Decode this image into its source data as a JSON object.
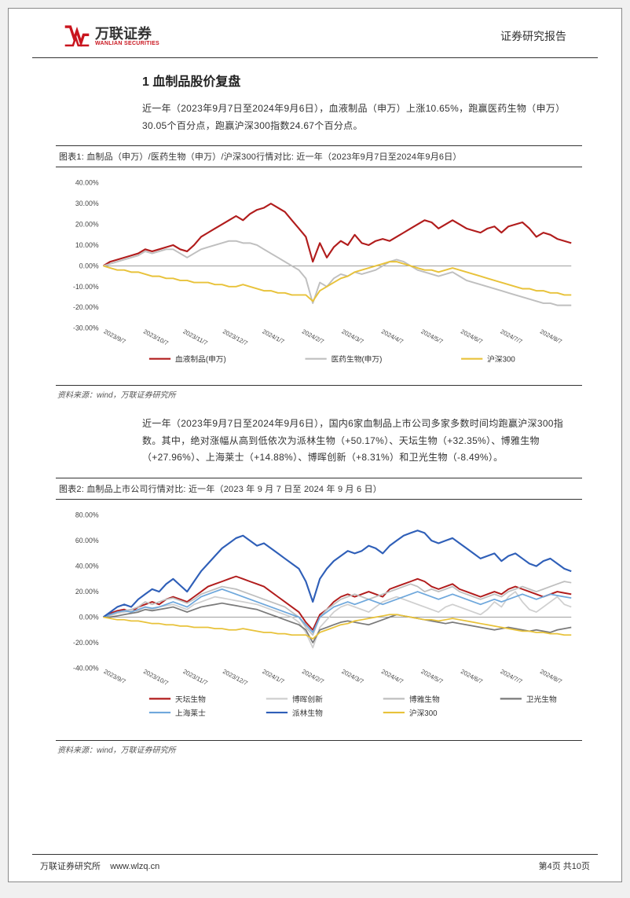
{
  "header": {
    "logo_cn": "万联证券",
    "logo_en": "WANLIAN SECURITIES",
    "report_type": "证券研究报告"
  },
  "section": {
    "number": "1",
    "title": "血制品股价复盘",
    "full_title": "1  血制品股价复盘",
    "para1": "近一年（2023年9月7日至2024年9月6日），血液制品（申万）上涨10.65%，跑赢医药生物（申万）30.05个百分点，跑赢沪深300指数24.67个百分点。",
    "para2": "近一年（2023年9月7日至2024年9月6日），国内6家血制品上市公司多家多数时间均跑赢沪深300指数。其中，绝对涨幅从高到低依次为派林生物（+50.17%）、天坛生物（+32.35%）、博雅生物（+27.96%）、上海莱士（+14.88%）、博晖创新（+8.31%）和卫光生物（-8.49%）。"
  },
  "figure1": {
    "title": "图表1:  血制品（申万）/医药生物（申万）/沪深300行情对比:  近一年（2023年9月7日至2024年9月6日）",
    "source": "资料来源：wind，万联证券研究所",
    "chart": {
      "type": "line",
      "ylim": [
        -30,
        40
      ],
      "ytick_step": 10,
      "yticks": [
        "-30.00%",
        "-20.00%",
        "-10.00%",
        "0.00%",
        "10.00%",
        "20.00%",
        "30.00%",
        "40.00%"
      ],
      "xlabels": [
        "2023/9/7",
        "2023/10/7",
        "2023/11/7",
        "2023/12/7",
        "2024/1/7",
        "2024/2/7",
        "2024/3/7",
        "2024/4/7",
        "2024/5/7",
        "2024/6/7",
        "2024/7/7",
        "2024/8/7"
      ],
      "background_color": "#ffffff",
      "axis_color": "#666666",
      "label_fontsize": 9,
      "series": [
        {
          "name": "血液制品(申万)",
          "color": "#b11c1c",
          "width": 2.2,
          "data": [
            0,
            2,
            3,
            4,
            5,
            6,
            8,
            7,
            8,
            9,
            10,
            8,
            7,
            10,
            14,
            16,
            18,
            20,
            22,
            24,
            22,
            25,
            27,
            28,
            30,
            28,
            26,
            22,
            18,
            14,
            2,
            11,
            4,
            9,
            12,
            10,
            15,
            11,
            10,
            12,
            13,
            12,
            14,
            16,
            18,
            20,
            22,
            21,
            18,
            20,
            22,
            20,
            18,
            17,
            16,
            18,
            19,
            16,
            19,
            20,
            21,
            18,
            14,
            16,
            15,
            13,
            12,
            11
          ]
        },
        {
          "name": "医药生物(申万)",
          "color": "#bfbfbf",
          "width": 2,
          "data": [
            0,
            1,
            2,
            3,
            4,
            5,
            7,
            6,
            7,
            8,
            8,
            6,
            4,
            6,
            8,
            9,
            10,
            11,
            12,
            12,
            11,
            11,
            10,
            8,
            6,
            4,
            2,
            0,
            -2,
            -6,
            -18,
            -8,
            -10,
            -6,
            -4,
            -5,
            -3,
            -4,
            -3,
            -2,
            0,
            2,
            3,
            2,
            0,
            -2,
            -3,
            -4,
            -5,
            -4,
            -3,
            -5,
            -7,
            -8,
            -9,
            -10,
            -11,
            -12,
            -13,
            -14,
            -15,
            -16,
            -17,
            -18,
            -18,
            -19,
            -19,
            -19
          ]
        },
        {
          "name": "沪深300",
          "color": "#e8c23a",
          "width": 2,
          "data": [
            0,
            -1,
            -2,
            -2,
            -3,
            -3,
            -4,
            -5,
            -5,
            -6,
            -6,
            -7,
            -7,
            -8,
            -8,
            -8,
            -9,
            -9,
            -10,
            -10,
            -9,
            -10,
            -11,
            -12,
            -12,
            -13,
            -13,
            -14,
            -14,
            -14,
            -17,
            -12,
            -10,
            -8,
            -6,
            -5,
            -3,
            -2,
            -1,
            0,
            1,
            2,
            2,
            1,
            0,
            -1,
            -2,
            -2,
            -3,
            -2,
            -1,
            -2,
            -3,
            -4,
            -5,
            -6,
            -7,
            -8,
            -9,
            -10,
            -11,
            -11,
            -12,
            -12,
            -13,
            -13,
            -14,
            -14
          ]
        }
      ]
    }
  },
  "figure2": {
    "title": "图表2:  血制品上市公司行情对比:  近一年（2023 年 9 月 7 日至 2024 年 9 月 6 日）",
    "source": "资料来源：wind，万联证券研究所",
    "chart": {
      "type": "line",
      "ylim": [
        -40,
        80
      ],
      "ytick_step": 20,
      "yticks": [
        "-40.00%",
        "-20.00%",
        "0.00%",
        "20.00%",
        "40.00%",
        "60.00%",
        "80.00%"
      ],
      "xlabels": [
        "2023/9/7",
        "2023/10/7",
        "2023/11/7",
        "2023/12/7",
        "2024/1/7",
        "2024/2/7",
        "2024/3/7",
        "2024/4/7",
        "2024/5/7",
        "2024/6/7",
        "2024/7/7",
        "2024/8/7"
      ],
      "background_color": "#ffffff",
      "axis_color": "#666666",
      "label_fontsize": 9,
      "series": [
        {
          "name": "天坛生物",
          "color": "#b11c1c",
          "width": 2,
          "data": [
            0,
            3,
            5,
            6,
            4,
            8,
            10,
            12,
            10,
            14,
            16,
            14,
            12,
            16,
            20,
            24,
            26,
            28,
            30,
            32,
            30,
            28,
            26,
            24,
            20,
            16,
            12,
            8,
            4,
            -4,
            -10,
            2,
            6,
            12,
            16,
            18,
            16,
            18,
            20,
            18,
            16,
            22,
            24,
            26,
            28,
            30,
            28,
            24,
            22,
            24,
            26,
            22,
            20,
            18,
            16,
            18,
            20,
            18,
            22,
            24,
            22,
            20,
            18,
            16,
            18,
            20,
            19,
            18
          ]
        },
        {
          "name": "博晖创新",
          "color": "#cfcfcf",
          "width": 1.8,
          "data": [
            0,
            1,
            3,
            4,
            5,
            5,
            8,
            6,
            8,
            9,
            10,
            8,
            6,
            10,
            12,
            14,
            16,
            15,
            14,
            13,
            12,
            11,
            10,
            8,
            6,
            4,
            2,
            0,
            -4,
            -12,
            -24,
            -8,
            -2,
            4,
            8,
            10,
            8,
            6,
            4,
            8,
            12,
            14,
            16,
            14,
            12,
            10,
            8,
            6,
            4,
            8,
            10,
            8,
            6,
            4,
            2,
            6,
            12,
            8,
            16,
            20,
            12,
            6,
            4,
            8,
            12,
            16,
            10,
            8
          ]
        },
        {
          "name": "博雅生物",
          "color": "#bfbfbf",
          "width": 1.8,
          "data": [
            0,
            2,
            4,
            5,
            6,
            8,
            12,
            10,
            12,
            14,
            15,
            13,
            11,
            14,
            18,
            20,
            22,
            24,
            23,
            22,
            20,
            18,
            16,
            14,
            12,
            10,
            8,
            4,
            0,
            -8,
            -14,
            0,
            6,
            10,
            14,
            16,
            18,
            16,
            14,
            16,
            18,
            20,
            22,
            24,
            26,
            24,
            20,
            22,
            20,
            22,
            24,
            20,
            18,
            16,
            14,
            16,
            18,
            16,
            20,
            22,
            24,
            22,
            20,
            22,
            24,
            26,
            28,
            27
          ]
        },
        {
          "name": "卫光生物",
          "color": "#7a7a7a",
          "width": 1.8,
          "data": [
            0,
            0,
            1,
            2,
            3,
            4,
            6,
            5,
            6,
            7,
            8,
            6,
            4,
            6,
            8,
            9,
            10,
            11,
            10,
            9,
            8,
            7,
            6,
            4,
            2,
            0,
            -2,
            -4,
            -6,
            -10,
            -20,
            -10,
            -8,
            -6,
            -4,
            -3,
            -4,
            -5,
            -6,
            -4,
            -2,
            0,
            2,
            1,
            0,
            -1,
            -2,
            -3,
            -4,
            -5,
            -4,
            -5,
            -6,
            -7,
            -8,
            -9,
            -10,
            -9,
            -8,
            -9,
            -10,
            -11,
            -10,
            -11,
            -12,
            -10,
            -9,
            -8
          ]
        },
        {
          "name": "上海莱士",
          "color": "#6fa8dc",
          "width": 1.8,
          "data": [
            0,
            2,
            4,
            5,
            4,
            6,
            8,
            7,
            8,
            10,
            12,
            10,
            8,
            12,
            16,
            18,
            20,
            22,
            20,
            18,
            16,
            14,
            12,
            10,
            8,
            6,
            4,
            2,
            0,
            -6,
            -12,
            0,
            4,
            8,
            10,
            12,
            10,
            12,
            14,
            12,
            10,
            12,
            14,
            16,
            18,
            20,
            18,
            16,
            14,
            16,
            18,
            16,
            14,
            12,
            10,
            12,
            14,
            12,
            14,
            16,
            18,
            16,
            14,
            16,
            18,
            17,
            16,
            15
          ]
        },
        {
          "name": "派林生物",
          "color": "#2f5fb8",
          "width": 2.2,
          "data": [
            0,
            4,
            8,
            10,
            8,
            14,
            18,
            22,
            20,
            26,
            30,
            25,
            20,
            28,
            36,
            42,
            48,
            54,
            58,
            62,
            64,
            60,
            56,
            58,
            54,
            50,
            46,
            42,
            38,
            28,
            12,
            30,
            38,
            44,
            48,
            52,
            50,
            52,
            56,
            54,
            50,
            56,
            60,
            64,
            66,
            68,
            66,
            60,
            58,
            60,
            62,
            58,
            54,
            50,
            46,
            48,
            50,
            44,
            48,
            50,
            46,
            42,
            40,
            44,
            46,
            42,
            38,
            36
          ]
        },
        {
          "name": "沪深300",
          "color": "#e8c23a",
          "width": 1.8,
          "data": [
            0,
            -1,
            -2,
            -2,
            -3,
            -3,
            -4,
            -5,
            -5,
            -6,
            -6,
            -7,
            -7,
            -8,
            -8,
            -8,
            -9,
            -9,
            -10,
            -10,
            -9,
            -10,
            -11,
            -12,
            -12,
            -13,
            -13,
            -14,
            -14,
            -14,
            -17,
            -12,
            -10,
            -8,
            -6,
            -5,
            -3,
            -2,
            -1,
            0,
            1,
            2,
            2,
            1,
            0,
            -1,
            -2,
            -2,
            -3,
            -2,
            -1,
            -2,
            -3,
            -4,
            -5,
            -6,
            -7,
            -8,
            -9,
            -10,
            -11,
            -11,
            -12,
            -12,
            -13,
            -13,
            -14,
            -14
          ]
        }
      ]
    }
  },
  "footer": {
    "left": "万联证券研究所",
    "url": "www.wlzq.cn",
    "page": "第4页 共10页"
  }
}
